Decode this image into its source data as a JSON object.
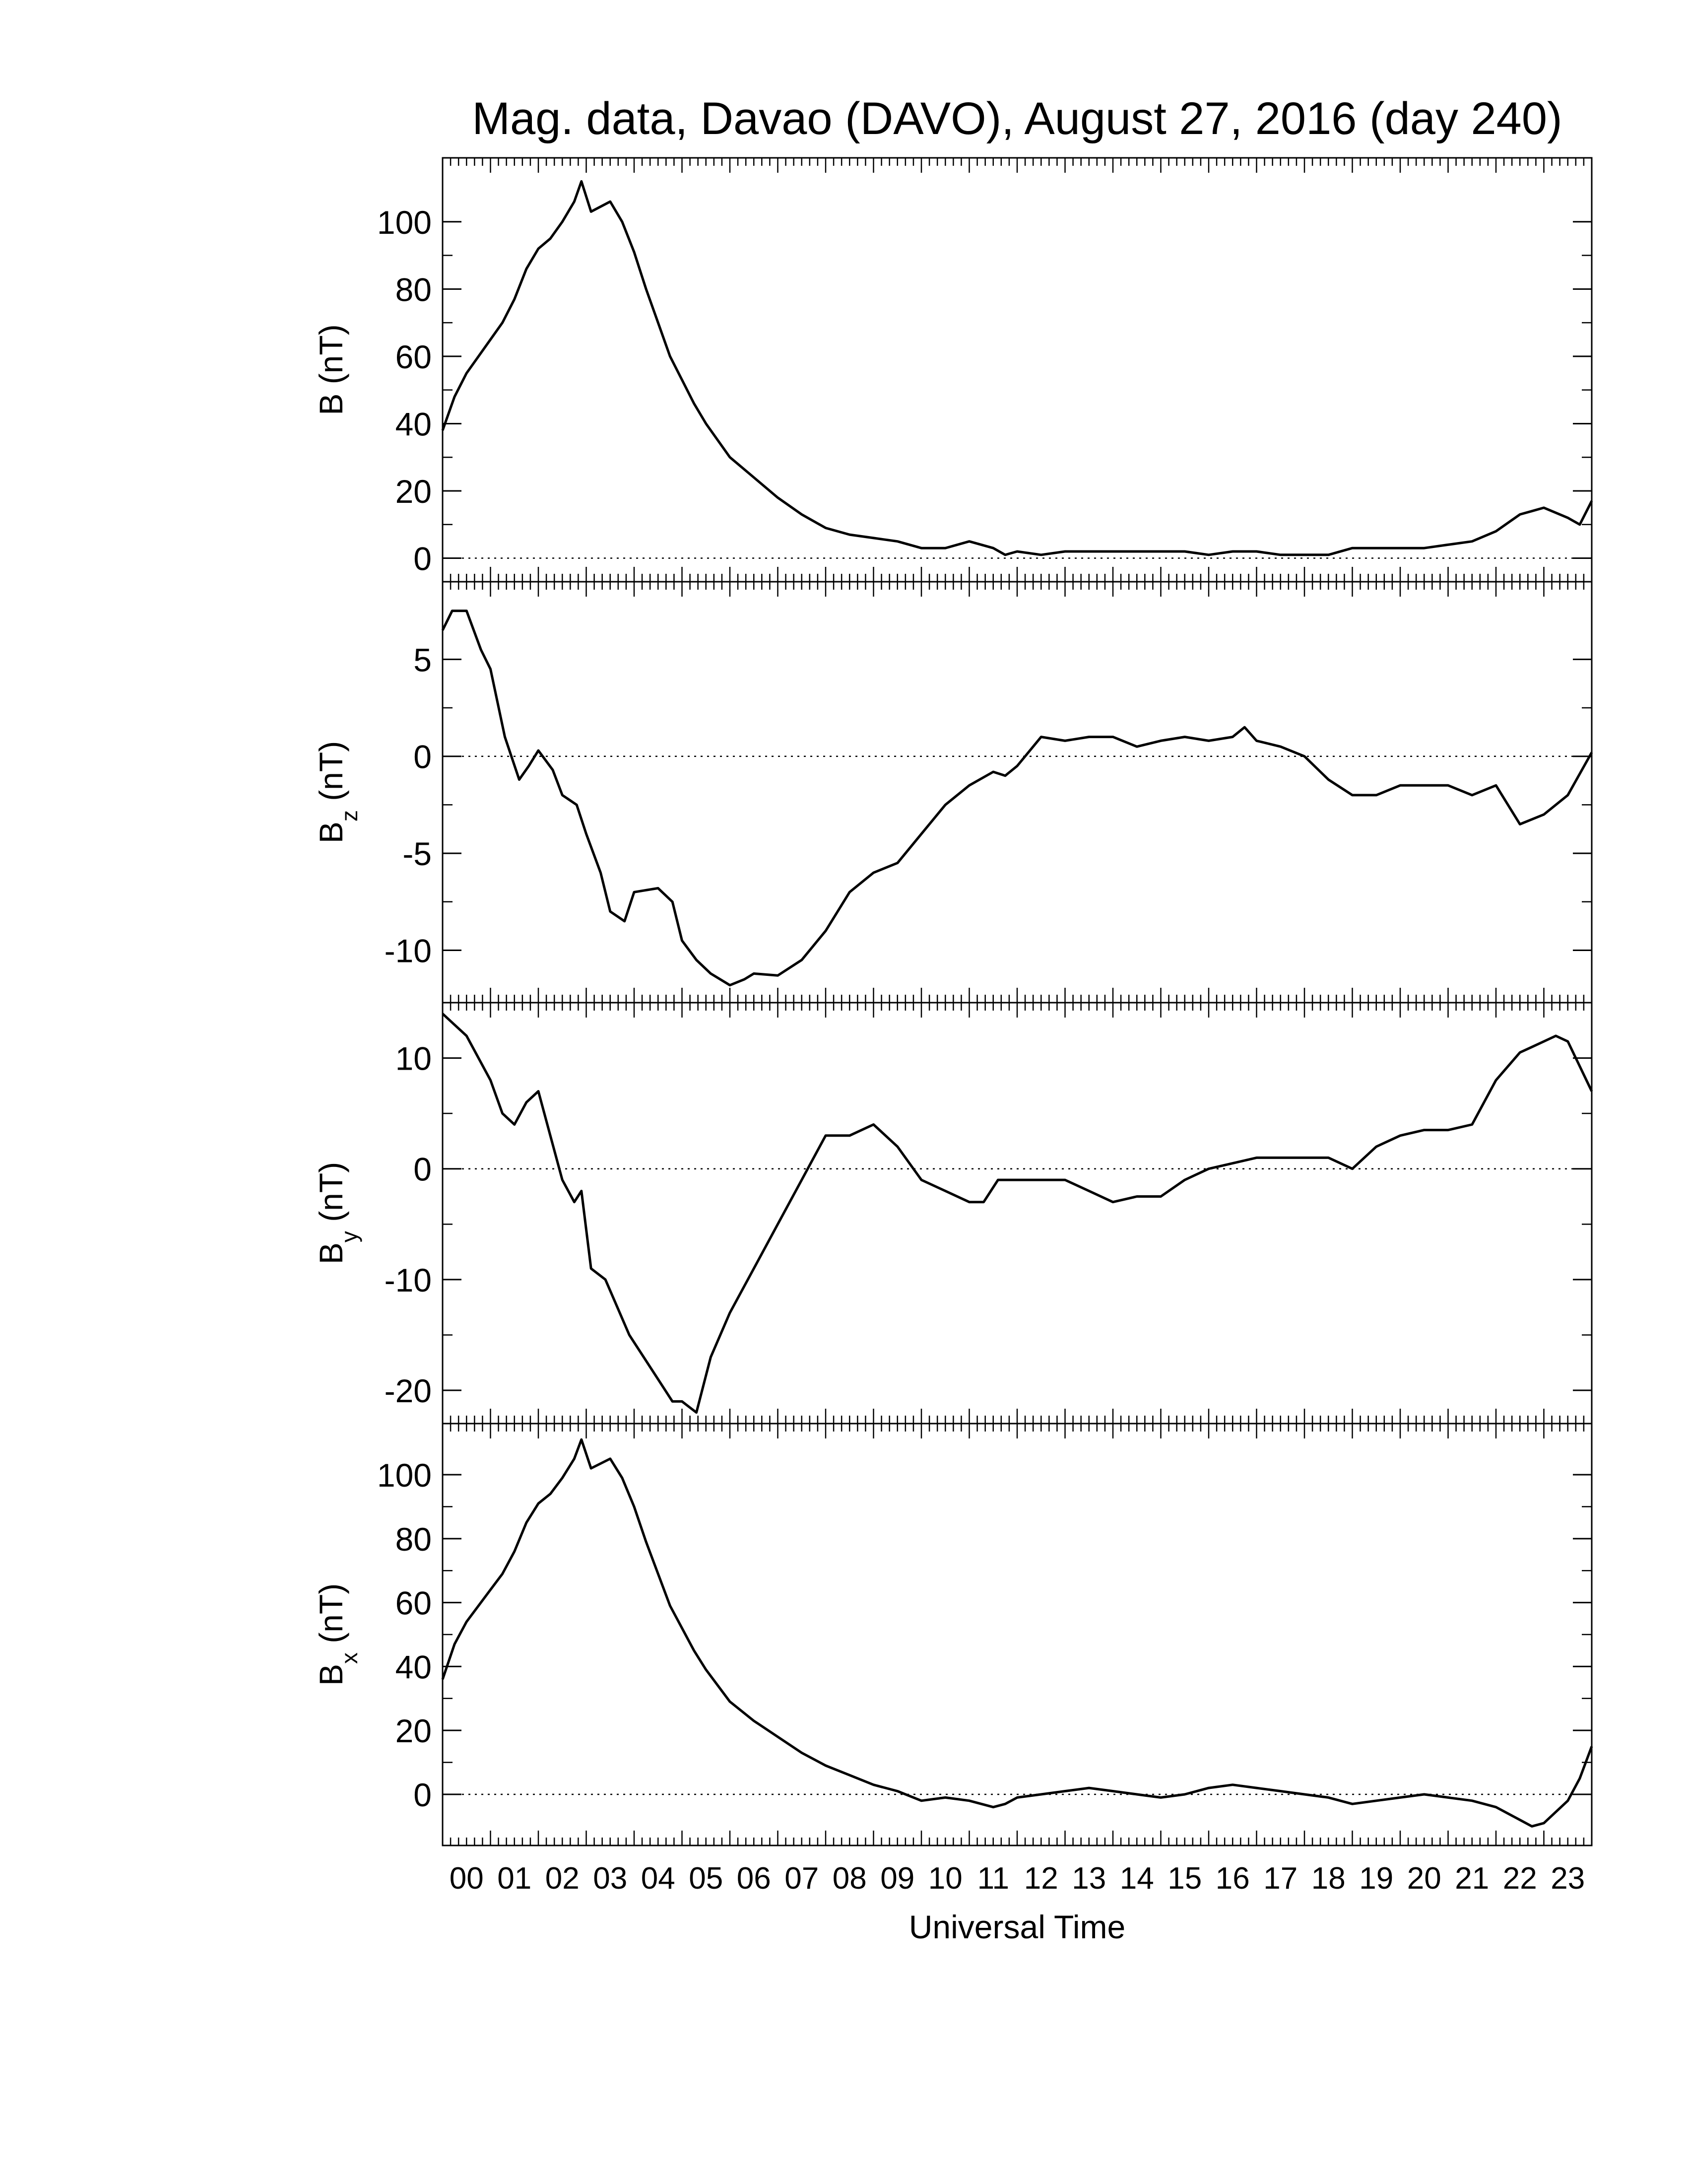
{
  "chart_data": {
    "title": "Mag. data, Davao (DAVO), August 27, 2016 (day 240)",
    "xlabel": "Universal Time",
    "x_tick_labels": [
      "00",
      "01",
      "02",
      "03",
      "04",
      "05",
      "06",
      "07",
      "08",
      "09",
      "10",
      "11",
      "12",
      "13",
      "14",
      "15",
      "16",
      "17",
      "18",
      "19",
      "20",
      "21",
      "22",
      "23"
    ],
    "xlim": [
      0,
      24
    ],
    "line_color": "#000000",
    "zero_line_style": "dotted",
    "panels": [
      {
        "type": "line",
        "ylabel_main": "B",
        "ylabel_sub": "",
        "ylabel_unit": "(nT)",
        "ylim": [
          -7,
          119
        ],
        "y_ticks": [
          0,
          20,
          40,
          60,
          80,
          100
        ],
        "y_tick_labels": [
          "0",
          "20",
          "40",
          "60",
          "80",
          "100"
        ],
        "x": [
          0,
          0.25,
          0.5,
          0.75,
          1.0,
          1.25,
          1.5,
          1.75,
          2.0,
          2.25,
          2.5,
          2.75,
          2.9,
          3.1,
          3.5,
          3.75,
          4.0,
          4.25,
          4.5,
          4.75,
          5.0,
          5.25,
          5.5,
          5.75,
          6.0,
          6.5,
          7.0,
          7.5,
          8.0,
          8.5,
          9.0,
          9.5,
          10.0,
          10.5,
          11.0,
          11.5,
          11.75,
          12.0,
          12.5,
          13.0,
          13.5,
          14.0,
          14.5,
          15.0,
          15.5,
          16.0,
          16.5,
          17.0,
          17.5,
          18.0,
          18.5,
          19.0,
          19.5,
          20.0,
          20.5,
          21.0,
          21.5,
          22.0,
          22.5,
          22.75,
          23.0,
          23.5,
          23.75,
          24.0
        ],
        "values": [
          38,
          48,
          55,
          60,
          65,
          70,
          77,
          86,
          92,
          95,
          100,
          106,
          112,
          103,
          106,
          100,
          91,
          80,
          70,
          60,
          53,
          46,
          40,
          35,
          30,
          24,
          18,
          13,
          9,
          7,
          6,
          5,
          3,
          3,
          5,
          3,
          1,
          2,
          1,
          2,
          2,
          2,
          2,
          2,
          2,
          1,
          2,
          2,
          1,
          1,
          1,
          3,
          3,
          3,
          3,
          4,
          5,
          8,
          13,
          14,
          15,
          12,
          10,
          17
        ]
      },
      {
        "type": "line",
        "ylabel_main": "B",
        "ylabel_sub": "z",
        "ylabel_unit": "(nT)",
        "ylim": [
          -12.7,
          9
        ],
        "y_ticks": [
          -10,
          -5,
          0,
          5
        ],
        "y_tick_labels": [
          "-10",
          "-5",
          "0",
          "5"
        ],
        "x": [
          0,
          0.2,
          0.5,
          0.8,
          1.0,
          1.3,
          1.6,
          1.8,
          2.0,
          2.3,
          2.5,
          2.8,
          3.0,
          3.3,
          3.5,
          3.8,
          4.0,
          4.5,
          4.8,
          5.0,
          5.3,
          5.6,
          6.0,
          6.3,
          6.5,
          7.0,
          7.5,
          8.0,
          8.5,
          9.0,
          9.5,
          10.0,
          10.5,
          11.0,
          11.5,
          11.75,
          12.0,
          12.5,
          13.0,
          13.5,
          14.0,
          14.5,
          15.0,
          15.5,
          16.0,
          16.5,
          16.75,
          17.0,
          17.5,
          18.0,
          18.5,
          19.0,
          19.5,
          20.0,
          20.5,
          21.0,
          21.5,
          22.0,
          22.5,
          23.0,
          23.5,
          24.0
        ],
        "values": [
          6.5,
          7.5,
          7.5,
          5.5,
          4.5,
          1.0,
          -1.2,
          -0.5,
          0.3,
          -0.7,
          -2.0,
          -2.5,
          -4.0,
          -6.0,
          -8.0,
          -8.5,
          -7.0,
          -6.8,
          -7.5,
          -9.5,
          -10.5,
          -11.2,
          -11.8,
          -11.5,
          -11.2,
          -11.3,
          -10.5,
          -9.0,
          -7.0,
          -6.0,
          -5.5,
          -4.0,
          -2.5,
          -1.5,
          -0.8,
          -1.0,
          -0.5,
          1.0,
          0.8,
          1.0,
          1.0,
          0.5,
          0.8,
          1.0,
          0.8,
          1.0,
          1.5,
          0.8,
          0.5,
          0.0,
          -1.2,
          -2.0,
          -2.0,
          -1.5,
          -1.5,
          -1.5,
          -2.0,
          -1.5,
          -3.5,
          -3.0,
          -2.0,
          0.2
        ]
      },
      {
        "type": "line",
        "ylabel_main": "B",
        "ylabel_sub": "y",
        "ylabel_unit": "(nT)",
        "ylim": [
          -23,
          15
        ],
        "y_ticks": [
          -20,
          -10,
          0,
          10
        ],
        "y_tick_labels": [
          "-20",
          "-10",
          "0",
          "10"
        ],
        "x": [
          0,
          0.25,
          0.5,
          0.75,
          1.0,
          1.25,
          1.5,
          1.75,
          2.0,
          2.25,
          2.5,
          2.75,
          2.9,
          3.1,
          3.4,
          3.6,
          3.9,
          4.2,
          4.5,
          4.8,
          5.0,
          5.3,
          5.6,
          6.0,
          6.5,
          7.0,
          7.5,
          8.0,
          8.5,
          9.0,
          9.5,
          10.0,
          10.5,
          11.0,
          11.3,
          11.6,
          12.0,
          12.5,
          13.0,
          13.5,
          14.0,
          14.5,
          15.0,
          15.5,
          16.0,
          16.5,
          17.0,
          17.5,
          18.0,
          18.5,
          19.0,
          19.5,
          20.0,
          20.5,
          21.0,
          21.5,
          22.0,
          22.5,
          22.75,
          23.0,
          23.25,
          23.5,
          24.0
        ],
        "values": [
          14,
          13,
          12,
          10,
          8,
          5,
          4,
          6,
          7,
          3,
          -1,
          -3,
          -2,
          -9,
          -10,
          -12,
          -15,
          -17,
          -19,
          -21,
          -21,
          -22,
          -17,
          -13,
          -9,
          -5,
          -1,
          3,
          3,
          4,
          2,
          -1,
          -2,
          -3,
          -3,
          -1,
          -1,
          -1,
          -1,
          -2,
          -3,
          -2.5,
          -2.5,
          -1,
          0,
          0.5,
          1,
          1,
          1,
          1,
          0,
          2,
          3,
          3.5,
          3.5,
          4,
          8,
          10.5,
          11,
          11.5,
          12,
          11.5,
          7
        ]
      },
      {
        "type": "line",
        "ylabel_main": "B",
        "ylabel_sub": "x",
        "ylabel_unit": "(nT)",
        "ylim": [
          -16,
          116
        ],
        "y_ticks": [
          0,
          20,
          40,
          60,
          80,
          100
        ],
        "y_tick_labels": [
          "0",
          "20",
          "40",
          "60",
          "80",
          "100"
        ],
        "x": [
          0,
          0.25,
          0.5,
          0.75,
          1.0,
          1.25,
          1.5,
          1.75,
          2.0,
          2.25,
          2.5,
          2.75,
          2.9,
          3.1,
          3.5,
          3.75,
          4.0,
          4.25,
          4.5,
          4.75,
          5.0,
          5.25,
          5.5,
          5.75,
          6.0,
          6.5,
          7.0,
          7.5,
          8.0,
          8.5,
          9.0,
          9.5,
          10.0,
          10.5,
          11.0,
          11.5,
          11.75,
          12.0,
          12.5,
          13.0,
          13.5,
          14.0,
          14.5,
          15.0,
          15.5,
          16.0,
          16.5,
          17.0,
          17.5,
          18.0,
          18.5,
          19.0,
          19.5,
          20.0,
          20.5,
          21.0,
          21.5,
          22.0,
          22.5,
          22.75,
          23.0,
          23.5,
          23.75,
          24.0
        ],
        "values": [
          36,
          47,
          54,
          59,
          64,
          69,
          76,
          85,
          91,
          94,
          99,
          105,
          111,
          102,
          105,
          99,
          90,
          79,
          69,
          59,
          52,
          45,
          39,
          34,
          29,
          23,
          18,
          13,
          9,
          6,
          3,
          1,
          -2,
          -1,
          -2,
          -4,
          -3,
          -1,
          0,
          1,
          2,
          1,
          0,
          -1,
          0,
          2,
          3,
          2,
          1,
          0,
          -1,
          -3,
          -2,
          -1,
          0,
          -1,
          -2,
          -4,
          -8,
          -10,
          -9,
          -2,
          5,
          15
        ]
      }
    ]
  }
}
